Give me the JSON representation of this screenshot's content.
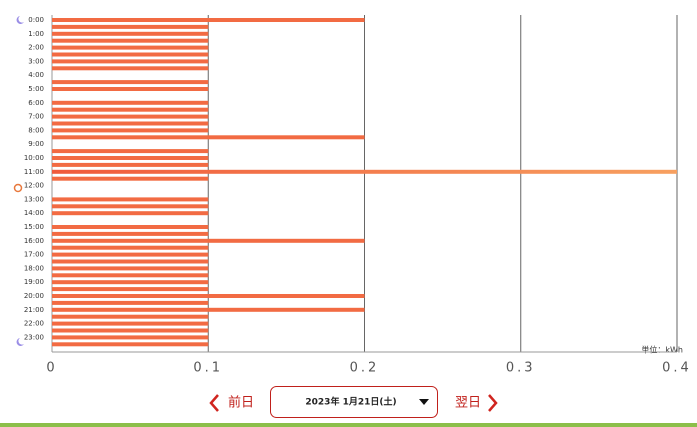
{
  "chart_data": {
    "type": "bar",
    "orientation": "horizontal",
    "categories": [
      "0:00",
      null,
      "1:00",
      null,
      "2:00",
      null,
      "3:00",
      null,
      "4:00",
      null,
      "5:00",
      null,
      "6:00",
      null,
      "7:00",
      null,
      "8:00",
      null,
      "9:00",
      null,
      "10:00",
      null,
      "11:00",
      null,
      "12:00",
      null,
      "13:00",
      null,
      "14:00",
      null,
      "15:00",
      null,
      "16:00",
      null,
      "17:00",
      null,
      "18:00",
      null,
      "19:00",
      null,
      "20:00",
      null,
      "21:00",
      null,
      "22:00",
      null,
      "23:00",
      null
    ],
    "values": [
      0.2,
      0.1,
      0.1,
      0.1,
      0.1,
      0.1,
      0.1,
      0.1,
      0,
      0.1,
      0.1,
      0,
      0.1,
      0.1,
      0.1,
      0.1,
      0.1,
      0.2,
      0,
      0.1,
      0.1,
      0.1,
      0.4,
      0.1,
      0,
      0,
      0.1,
      0.1,
      0.1,
      0,
      0.1,
      0.1,
      0.2,
      0.1,
      0.1,
      0.1,
      0.1,
      0.1,
      0.1,
      0.1,
      0.2,
      0.1,
      0.2,
      0.1,
      0.1,
      0.1,
      0.1,
      0.1
    ],
    "color": "#f26b43",
    "xlim": [
      0,
      0.4
    ],
    "xticks": [
      0,
      0.1,
      0.2,
      0.3,
      0.4
    ],
    "grid": true,
    "unit_label": "単位：kWh"
  },
  "nav": {
    "prev": "前日",
    "date": "2023年 1月21日(土)",
    "next": "翌日"
  }
}
